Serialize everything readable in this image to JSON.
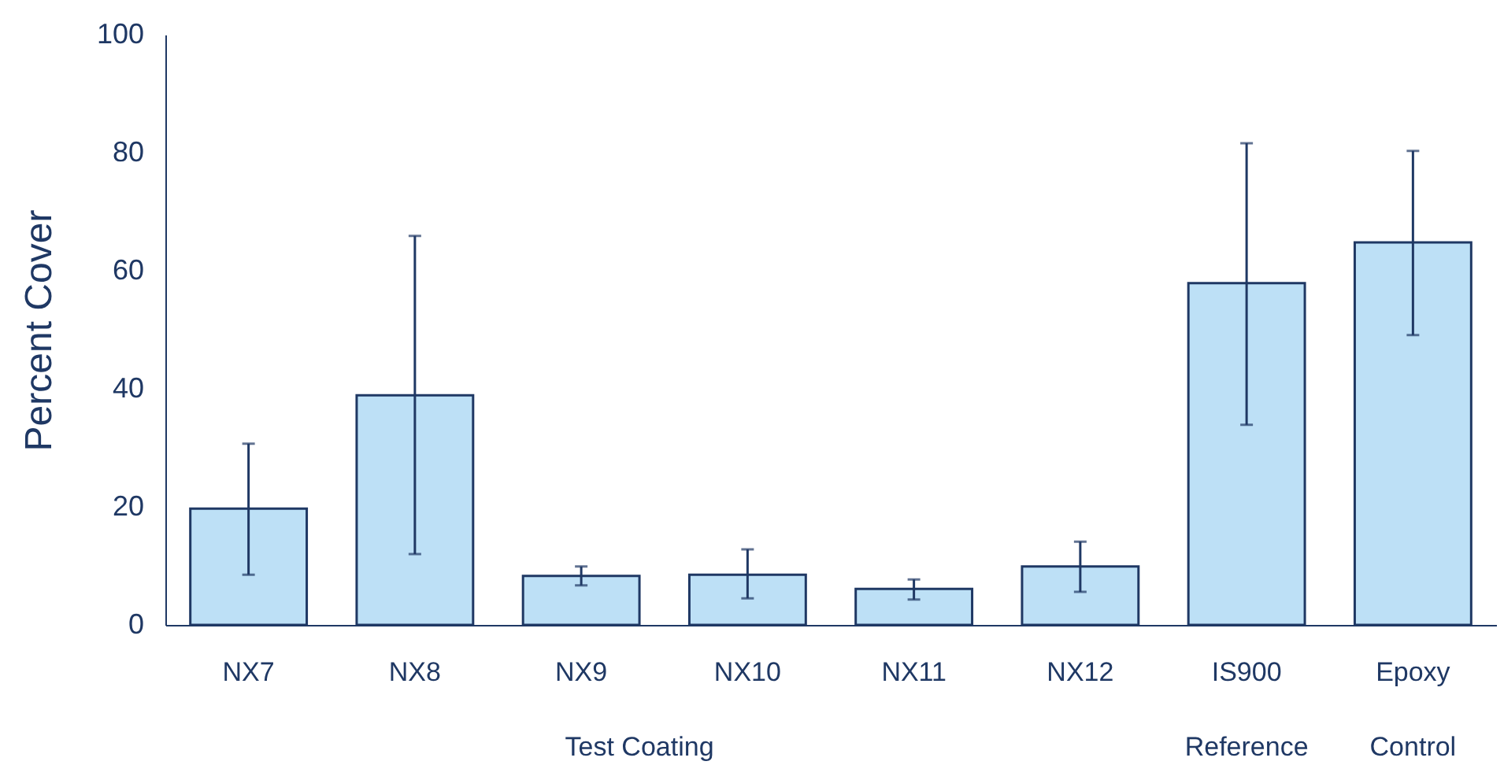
{
  "chart_data": {
    "type": "bar",
    "ylabel": "Percent Cover",
    "categories": [
      "NX7",
      "NX8",
      "NX9",
      "NX10",
      "NX11",
      "NX12",
      "IS900",
      "Epoxy"
    ],
    "values": [
      19.7,
      38.9,
      8.3,
      8.5,
      6.1,
      9.9,
      57.9,
      64.8
    ],
    "errors": [
      [
        8.5,
        30.7
      ],
      [
        12,
        65.9
      ],
      [
        6.7,
        9.9
      ],
      [
        4.5,
        12.8
      ],
      [
        4.3,
        7.7
      ],
      [
        5.6,
        14.1
      ],
      [
        33.9,
        81.6
      ],
      [
        49.1,
        80.3
      ]
    ],
    "color": "#bde0f6",
    "ylim": [
      0,
      100
    ],
    "yticks": [
      0,
      20,
      40,
      60,
      80,
      100
    ],
    "annotations": [
      "Test Coating",
      "Reference",
      "Control"
    ],
    "grid": false
  }
}
